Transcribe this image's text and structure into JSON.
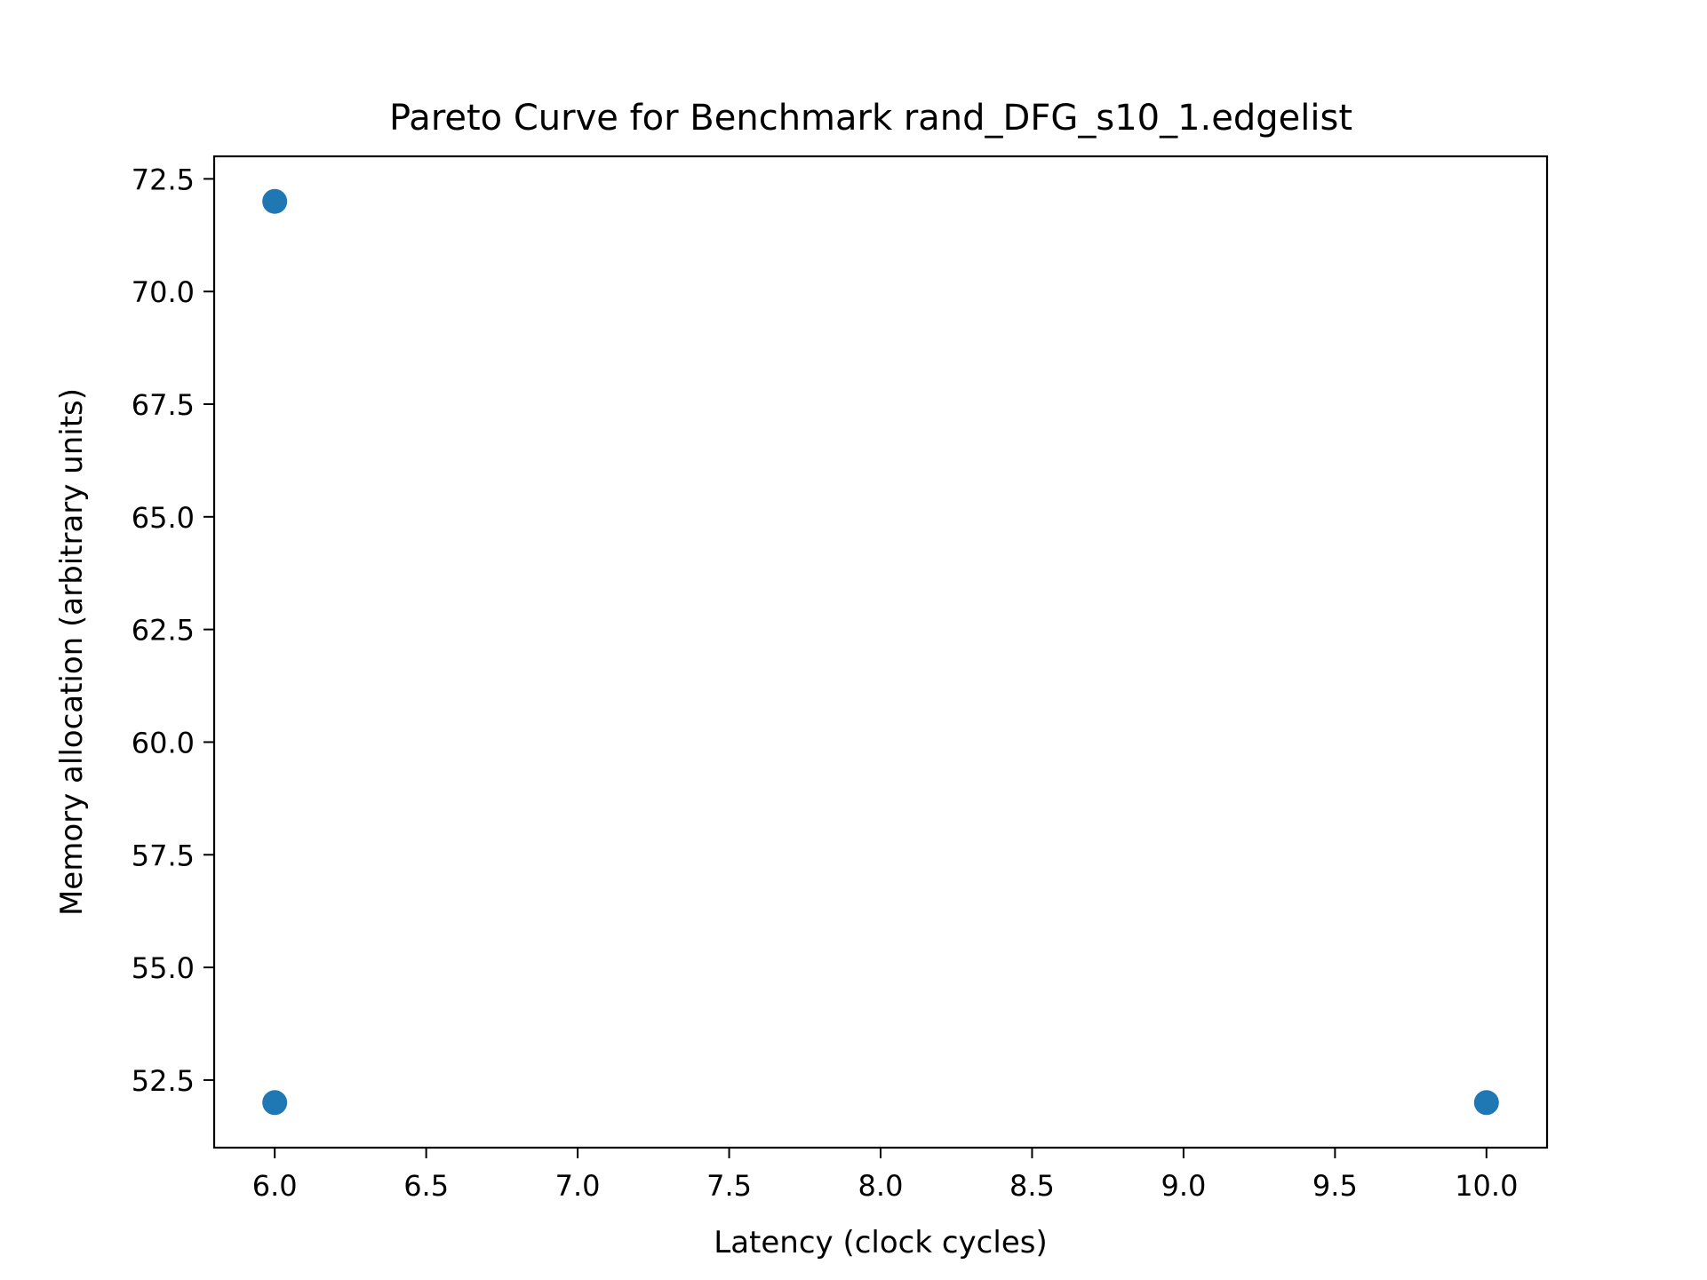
{
  "chart_data": {
    "type": "scatter",
    "title": "Pareto Curve for Benchmark rand_DFG_s10_1.edgelist",
    "xlabel": "Latency (clock cycles)",
    "ylabel": "Memory allocation (arbitrary units)",
    "xlim": [
      5.8,
      10.2
    ],
    "ylim": [
      51.0,
      73.0
    ],
    "xticks": [
      6.0,
      6.5,
      7.0,
      7.5,
      8.0,
      8.5,
      9.0,
      9.5,
      10.0
    ],
    "xtick_labels": [
      "6.0",
      "6.5",
      "7.0",
      "7.5",
      "8.0",
      "8.5",
      "9.0",
      "9.5",
      "10.0"
    ],
    "yticks": [
      52.5,
      55.0,
      57.5,
      60.0,
      62.5,
      65.0,
      67.5,
      70.0,
      72.5
    ],
    "ytick_labels": [
      "52.5",
      "55.0",
      "57.5",
      "60.0",
      "62.5",
      "65.0",
      "67.5",
      "70.0",
      "72.5"
    ],
    "grid": false,
    "series": [
      {
        "color": "#1f77b4",
        "points": [
          {
            "x": 6,
            "y": 72
          },
          {
            "x": 6,
            "y": 52
          },
          {
            "x": 10,
            "y": 52
          }
        ]
      }
    ]
  }
}
